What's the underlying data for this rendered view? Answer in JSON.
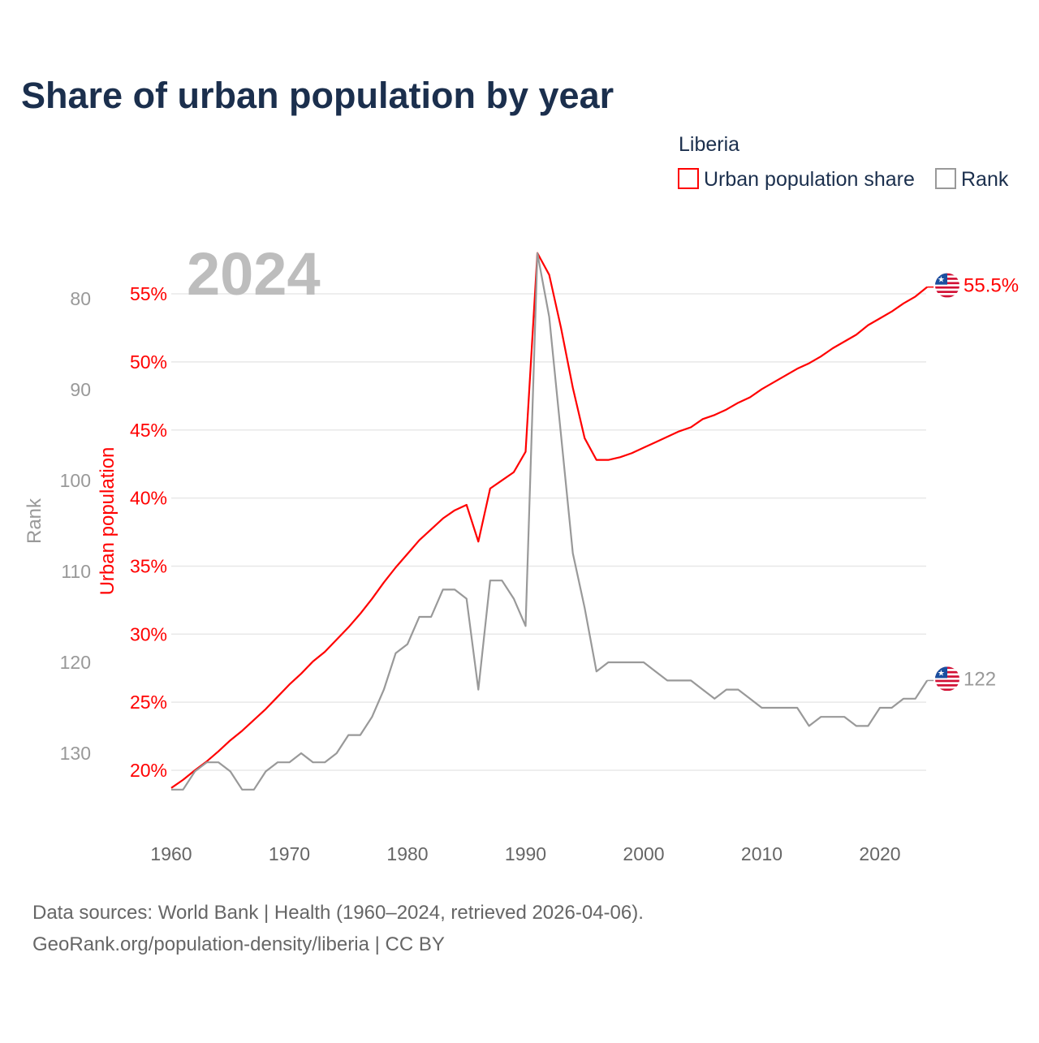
{
  "chart_data": {
    "type": "line",
    "title": "Share of urban population by year",
    "legend": {
      "title": "Liberia",
      "placement": "top-right",
      "entries": [
        "Urban population share",
        "Rank"
      ]
    },
    "watermark_year": "2024",
    "xlabel": "",
    "x_ticks": [
      "1960",
      "1970",
      "1980",
      "1990",
      "2000",
      "2010",
      "2020"
    ],
    "xlim": [
      1960,
      2024
    ],
    "y_left": {
      "label": "Urban population",
      "ticks": [
        "20%",
        "25%",
        "30%",
        "35%",
        "40%",
        "45%",
        "50%",
        "55%"
      ],
      "ylim": [
        20,
        55
      ],
      "color": "#ff0000"
    },
    "y_rank": {
      "label": "Rank",
      "ticks": [
        "80",
        "90",
        "100",
        "110",
        "120",
        "130"
      ],
      "ylim": [
        80,
        130
      ],
      "inverted": true,
      "color": "#999999"
    },
    "grid": true,
    "x": [
      1960,
      1961,
      1962,
      1963,
      1964,
      1965,
      1966,
      1967,
      1968,
      1969,
      1970,
      1971,
      1972,
      1973,
      1974,
      1975,
      1976,
      1977,
      1978,
      1979,
      1980,
      1981,
      1982,
      1983,
      1984,
      1985,
      1986,
      1987,
      1988,
      1989,
      1990,
      1991,
      1992,
      1993,
      1994,
      1995,
      1996,
      1997,
      1998,
      1999,
      2000,
      2001,
      2002,
      2003,
      2004,
      2005,
      2006,
      2007,
      2008,
      2009,
      2010,
      2011,
      2012,
      2013,
      2014,
      2015,
      2016,
      2017,
      2018,
      2019,
      2020,
      2021,
      2022,
      2023,
      2024
    ],
    "series": [
      {
        "name": "Urban population share",
        "color": "#ff0000",
        "axis": "left",
        "end_label": "55.5%",
        "values": [
          18.7,
          19.3,
          20.0,
          20.65,
          21.4,
          22.2,
          22.9,
          23.7,
          24.5,
          25.4,
          26.3,
          27.1,
          28.0,
          28.7,
          29.6,
          30.5,
          31.5,
          32.6,
          33.8,
          34.9,
          35.9,
          36.9,
          37.7,
          38.5,
          39.1,
          39.5,
          36.8,
          40.7,
          41.3,
          41.9,
          43.4,
          58.0,
          56.4,
          52.5,
          48.1,
          44.4,
          42.8,
          42.8,
          43.0,
          43.3,
          43.7,
          44.1,
          44.5,
          44.9,
          45.2,
          45.8,
          46.1,
          46.5,
          47.0,
          47.4,
          48.0,
          48.5,
          49.0,
          49.5,
          49.9,
          50.4,
          51.0,
          51.5,
          52.0,
          52.7,
          53.2,
          53.7,
          54.3,
          54.8,
          55.5
        ]
      },
      {
        "name": "Rank",
        "color": "#999999",
        "axis": "rank",
        "end_label": "122",
        "values": [
          134,
          134,
          132,
          131,
          131,
          132,
          134,
          134,
          132,
          131,
          131,
          130,
          131,
          131,
          130,
          128,
          128,
          126,
          123,
          119,
          118,
          115,
          115,
          112,
          112,
          113,
          123,
          111,
          111,
          113,
          116,
          75,
          82,
          95,
          108,
          114,
          121,
          120,
          120,
          120,
          120,
          121,
          122,
          122,
          122,
          123,
          124,
          123,
          123,
          124,
          125,
          125,
          125,
          125,
          127,
          126,
          126,
          126,
          127,
          127,
          125,
          125,
          124,
          124,
          122
        ]
      }
    ],
    "end_marker_icon": "liberia-flag-icon"
  },
  "footer": {
    "line1": "Data sources: World Bank | Health (1960–2024, retrieved 2026-04-06).",
    "line2": "GeoRank.org/population-density/liberia | CC BY"
  }
}
